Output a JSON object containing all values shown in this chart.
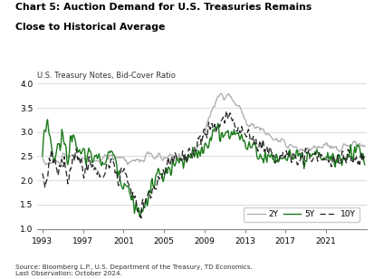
{
  "title_line1": "Chart 5: Auction Demand for U.S. Treasuries Remains",
  "title_line2": "Close to Historical Average",
  "subtitle": "U.S. Treasury Notes, Bid-Cover Ratio",
  "source": "Source: Bloomberg L.P., U.S. Department of the Treasury, TD Economics.\nLast Observation: October 2024.",
  "ylim": [
    1.0,
    4.0
  ],
  "yticks": [
    1.0,
    1.5,
    2.0,
    2.5,
    3.0,
    3.5,
    4.0
  ],
  "xticks": [
    1993,
    1997,
    2001,
    2005,
    2009,
    2013,
    2017,
    2021
  ],
  "xlim": [
    1992.5,
    2025.0
  ],
  "color_2y": "#aaaaaa",
  "color_5y": "#1a7a1a",
  "color_10y": "#222222",
  "legend_labels": [
    "2Y",
    "5Y",
    "10Y"
  ],
  "figsize": [
    4.13,
    3.08
  ],
  "dpi": 100
}
